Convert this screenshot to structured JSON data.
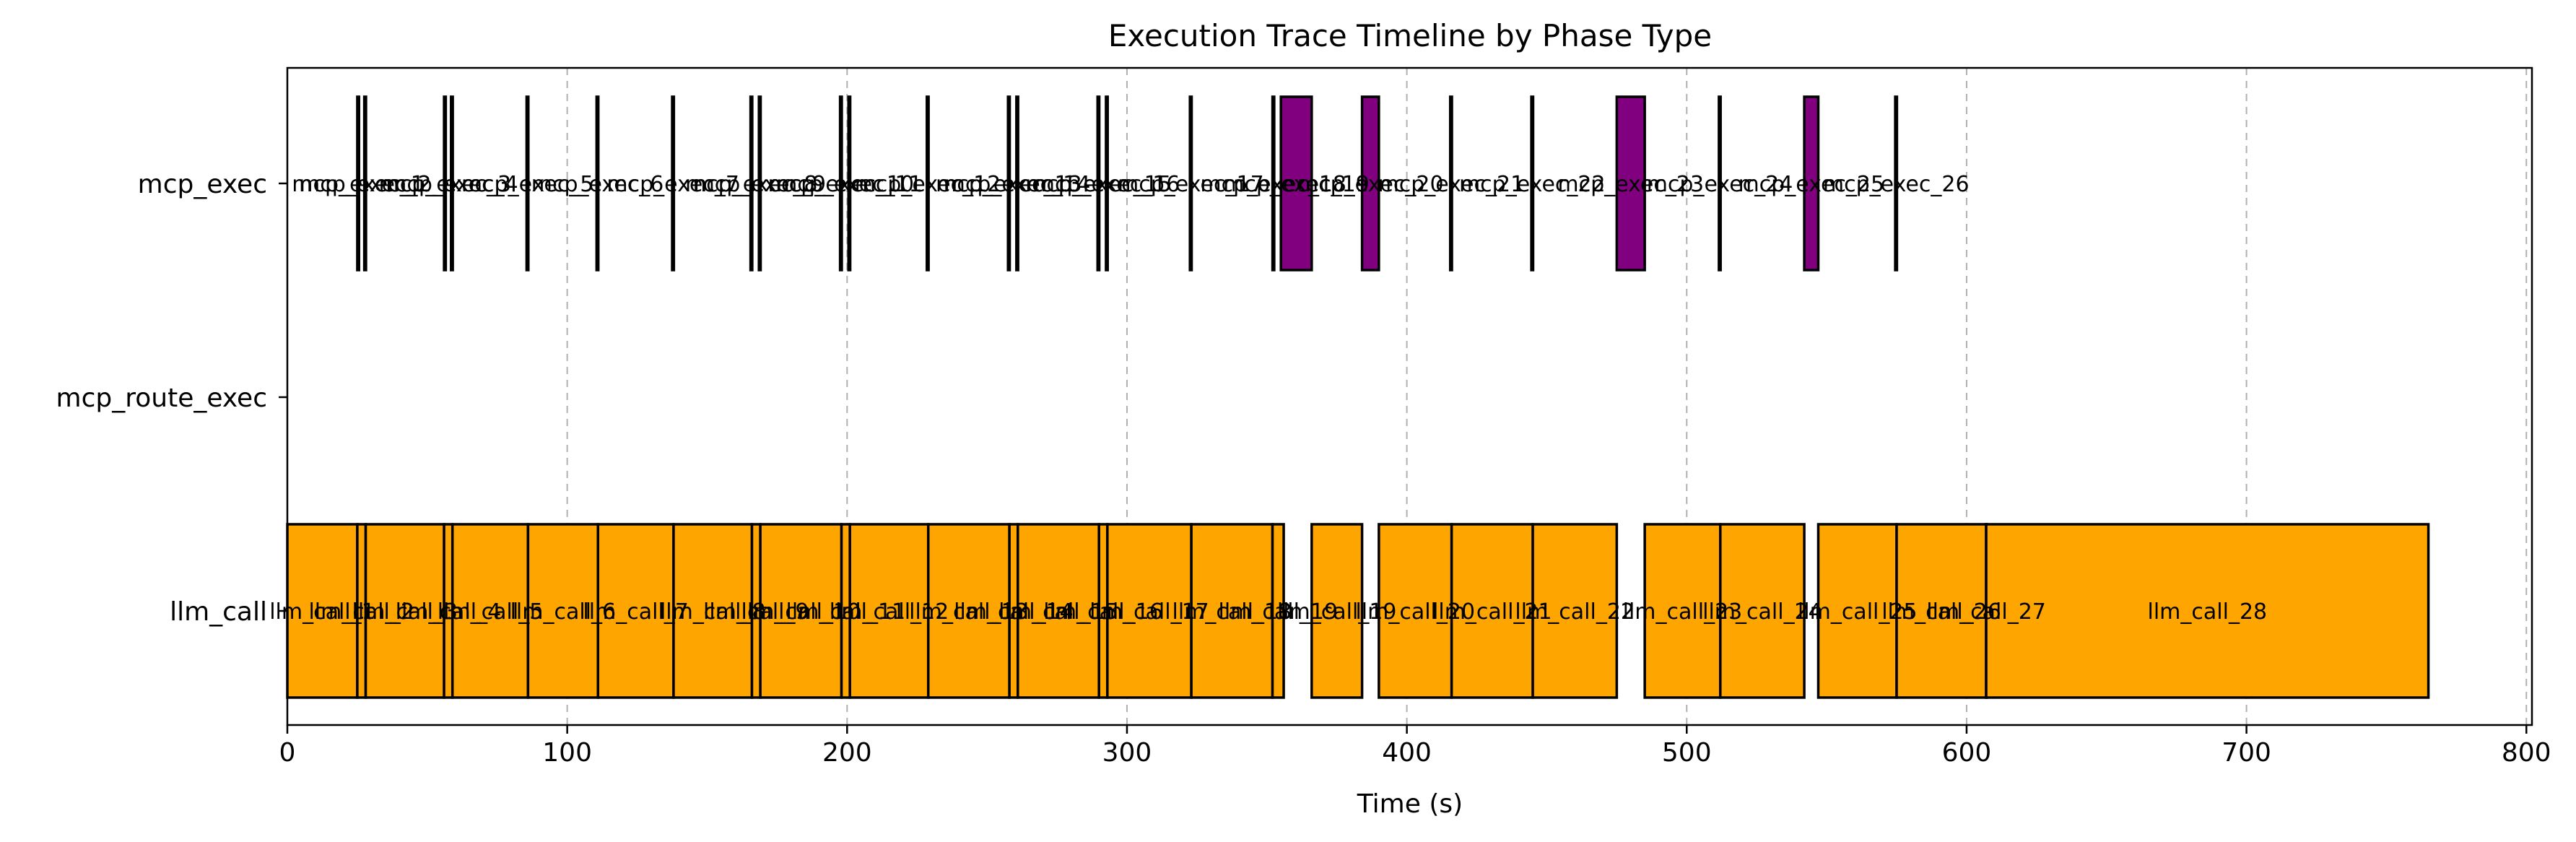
{
  "chart_data": {
    "type": "timeline",
    "title": "Execution Trace Timeline by Phase Type",
    "xlabel": "Time (s)",
    "ylabel": "",
    "xlim": [
      0,
      802
    ],
    "grid": "x-dashed",
    "categories": [
      "llm_call",
      "mcp_route_exec",
      "mcp_exec"
    ],
    "x_ticks": [
      0,
      100,
      200,
      300,
      400,
      500,
      600,
      700,
      800
    ],
    "series": [
      {
        "category": "llm_call",
        "color": "#FFA500",
        "items": [
          {
            "label": "llm_call_1",
            "start": 0,
            "end": 25
          },
          {
            "label": "llm_call_2",
            "start": 25,
            "end": 28
          },
          {
            "label": "llm_call_3",
            "start": 28,
            "end": 56
          },
          {
            "label": "llm_call_4",
            "start": 56,
            "end": 59
          },
          {
            "label": "llm_call_5",
            "start": 59,
            "end": 86
          },
          {
            "label": "llm_call_6",
            "start": 86,
            "end": 111
          },
          {
            "label": "llm_call_7",
            "start": 111,
            "end": 138
          },
          {
            "label": "llm_call_8",
            "start": 138,
            "end": 166
          },
          {
            "label": "llm_call_9",
            "start": 166,
            "end": 169
          },
          {
            "label": "llm_call_10",
            "start": 169,
            "end": 198
          },
          {
            "label": "llm_call_11",
            "start": 198,
            "end": 201
          },
          {
            "label": "llm_call_12",
            "start": 201,
            "end": 229
          },
          {
            "label": "llm_call_13",
            "start": 229,
            "end": 258
          },
          {
            "label": "llm_call_14",
            "start": 258,
            "end": 261
          },
          {
            "label": "llm_call_15",
            "start": 261,
            "end": 290
          },
          {
            "label": "llm_call_16",
            "start": 290,
            "end": 293
          },
          {
            "label": "llm_call_17",
            "start": 293,
            "end": 323
          },
          {
            "label": "llm_call_18",
            "start": 323,
            "end": 352
          },
          {
            "label": "llm_call_19",
            "start": 352,
            "end": 356
          },
          {
            "label": "llm_call_19",
            "start": 366,
            "end": 384
          },
          {
            "label": "llm_call_20",
            "start": 390,
            "end": 416
          },
          {
            "label": "llm_call_21",
            "start": 416,
            "end": 445
          },
          {
            "label": "llm_call_22",
            "start": 445,
            "end": 475
          },
          {
            "label": "llm_call_23",
            "start": 485,
            "end": 512
          },
          {
            "label": "llm_call_24",
            "start": 512,
            "end": 542
          },
          {
            "label": "llm_call_25",
            "start": 547,
            "end": 575
          },
          {
            "label": "llm_call_26",
            "start": 575,
            "end": 607
          },
          {
            "label": "llm_call_27",
            "start": 607,
            "end": 607
          },
          {
            "label": "llm_call_28",
            "start": 607,
            "end": 765
          }
        ]
      },
      {
        "category": "mcp_route_exec",
        "color": "#1f77b4",
        "items": []
      },
      {
        "category": "mcp_exec",
        "color": "#800080",
        "items": [
          {
            "label": "mcp_exec_1",
            "start": 25,
            "end": 25.6
          },
          {
            "label": "mcp_exec_2",
            "start": 27.5,
            "end": 28.1
          },
          {
            "label": "mcp_exec_3",
            "start": 56,
            "end": 56.6
          },
          {
            "label": "mcp_exec_4",
            "start": 58.5,
            "end": 59.1
          },
          {
            "label": "mcp_exec_5",
            "start": 85.5,
            "end": 86.1
          },
          {
            "label": "mcp_exec_6",
            "start": 110.5,
            "end": 111.1
          },
          {
            "label": "mcp_exec_7",
            "start": 137.5,
            "end": 138.1
          },
          {
            "label": "mcp_exec_8",
            "start": 165.5,
            "end": 166.1
          },
          {
            "label": "mcp_exec_9",
            "start": 168.5,
            "end": 169.1
          },
          {
            "label": "mcp_exec_10",
            "start": 197.5,
            "end": 198.1
          },
          {
            "label": "mcp_exec_11",
            "start": 200.5,
            "end": 201.1
          },
          {
            "label": "mcp_exec_12",
            "start": 228.5,
            "end": 229.1
          },
          {
            "label": "mcp_exec_13",
            "start": 257.5,
            "end": 258.1
          },
          {
            "label": "mcp_exec_14",
            "start": 260.5,
            "end": 261.1
          },
          {
            "label": "mcp_exec_15",
            "start": 289.5,
            "end": 290.1
          },
          {
            "label": "mcp_exec_16",
            "start": 292.5,
            "end": 293.1
          },
          {
            "label": "mcp_exec_17",
            "start": 322.5,
            "end": 323.1
          },
          {
            "label": "mcp_exec_18",
            "start": 352,
            "end": 352.6
          },
          {
            "label": "mcp_exec_19",
            "start": 355,
            "end": 366
          },
          {
            "label": "mcp_exec_20",
            "start": 384,
            "end": 390
          },
          {
            "label": "mcp_exec_21",
            "start": 415.5,
            "end": 416.1
          },
          {
            "label": "mcp_exec_22",
            "start": 444.5,
            "end": 445.1
          },
          {
            "label": "mcp_exec_23",
            "start": 475,
            "end": 485
          },
          {
            "label": "mcp_exec_24",
            "start": 511.5,
            "end": 512.1
          },
          {
            "label": "mcp_exec_25",
            "start": 542,
            "end": 547
          },
          {
            "label": "mcp_exec_26",
            "start": 574.5,
            "end": 575.1
          }
        ]
      }
    ]
  }
}
